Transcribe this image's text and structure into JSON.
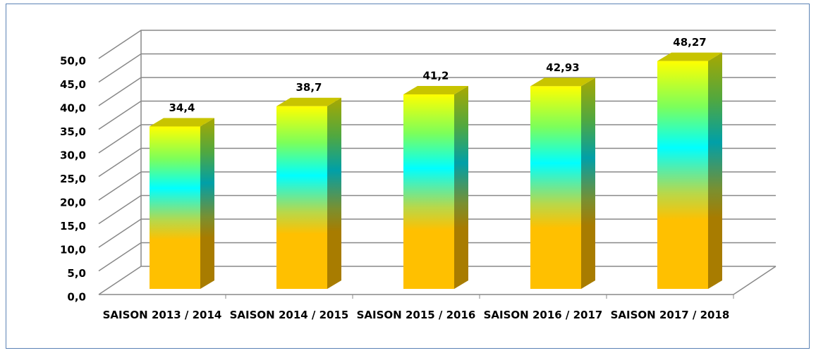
{
  "chart_data": {
    "type": "bar3d",
    "categories": [
      "SAISON 2013 / 2014",
      "SAISON 2014 / 2015",
      "SAISON 2015 / 2016",
      "SAISON 2016 / 2017",
      "SAISON 2017 / 2018"
    ],
    "values": [
      34.4,
      38.7,
      41.2,
      42.93,
      48.27
    ],
    "value_labels": [
      "34,4",
      "38,7",
      "41,2",
      "42,93",
      "48,27"
    ],
    "ylim": [
      0,
      50
    ],
    "yticks": [
      {
        "value": 0,
        "label": "0,0"
      },
      {
        "value": 5,
        "label": "5,0"
      },
      {
        "value": 10,
        "label": "10,0"
      },
      {
        "value": 15,
        "label": "15,0"
      },
      {
        "value": 20,
        "label": "20,0"
      },
      {
        "value": 25,
        "label": "25,0"
      },
      {
        "value": 30,
        "label": "30,0"
      },
      {
        "value": 35,
        "label": "35,0"
      },
      {
        "value": 40,
        "label": "40,0"
      },
      {
        "value": 45,
        "label": "45,0"
      },
      {
        "value": 50,
        "label": "50,0"
      }
    ],
    "grid": true
  }
}
